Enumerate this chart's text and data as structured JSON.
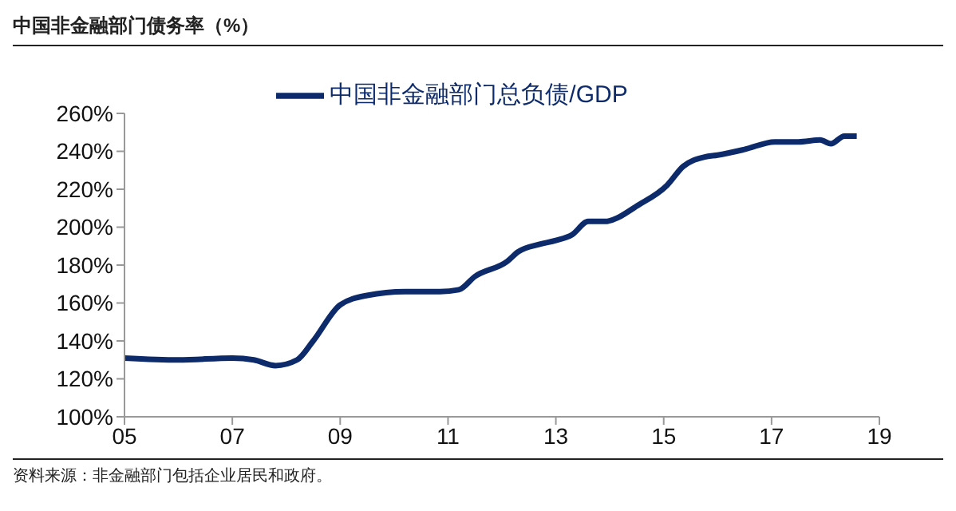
{
  "chart_data": {
    "type": "line",
    "title": "中国非金融部门债务率（%）",
    "x": [
      2005,
      2006,
      2007,
      2007.4,
      2007.8,
      2008.2,
      2008.5,
      2009,
      2009.5,
      2010.2,
      2010.85,
      2011.2,
      2011.5,
      2012.1,
      2012.3,
      2012.7,
      2013,
      2013.3,
      2013.6,
      2013.9,
      2014.55,
      2015.06,
      2015.36,
      2015.76,
      2016,
      2016.5,
      2017.06,
      2017.5,
      2017.9,
      2018.1,
      2018.35,
      2018.58
    ],
    "series": [
      {
        "name": "中国非金融部门总负债/GDP",
        "color": "#0d2a6b",
        "values": [
          131,
          130,
          131,
          130,
          127,
          130,
          140,
          159,
          164,
          166,
          166,
          167,
          174,
          182,
          187,
          191,
          193,
          196,
          203,
          203,
          212,
          222,
          232,
          237,
          238,
          241,
          245,
          245,
          246,
          244,
          248,
          248
        ]
      }
    ],
    "xlim": [
      2005,
      2019
    ],
    "xticks": [
      {
        "value": 2005,
        "label": "05"
      },
      {
        "value": 2007,
        "label": "07"
      },
      {
        "value": 2009,
        "label": "09"
      },
      {
        "value": 2011,
        "label": "11"
      },
      {
        "value": 2013,
        "label": "13"
      },
      {
        "value": 2015,
        "label": "15"
      },
      {
        "value": 2017,
        "label": "17"
      },
      {
        "value": 2019,
        "label": "19"
      }
    ],
    "ylim": [
      100,
      260
    ],
    "yticks": [
      {
        "value": 100,
        "label": "100%"
      },
      {
        "value": 120,
        "label": "120%"
      },
      {
        "value": 140,
        "label": "140%"
      },
      {
        "value": 160,
        "label": "160%"
      },
      {
        "value": 180,
        "label": "180%"
      },
      {
        "value": 200,
        "label": "200%"
      },
      {
        "value": 220,
        "label": "220%"
      },
      {
        "value": 240,
        "label": "240%"
      },
      {
        "value": 260,
        "label": "260%"
      }
    ],
    "legend": "top",
    "grid": false,
    "marker": "none",
    "line_style": "solid",
    "annotations": [
      "资料来源：非金融部门包括企业居民和政府。"
    ]
  }
}
